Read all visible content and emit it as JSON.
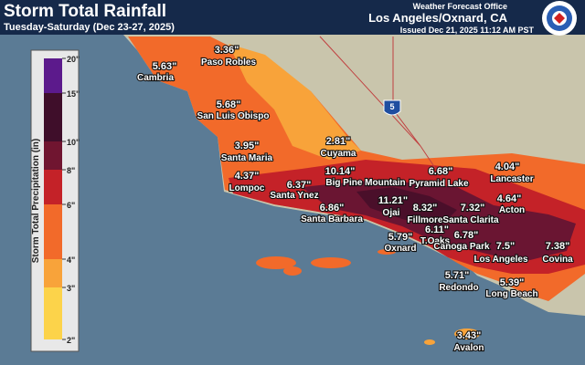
{
  "header": {
    "title": "Storm Total Rainfall",
    "subtitle": "Tuesday-Saturday (Dec 23-27, 2025)",
    "office": "Weather Forecast Office",
    "location": "Los Angeles/Oxnard, CA",
    "issued": "Issued Dec 21, 2025 11:12 AM PST"
  },
  "legend": {
    "title": "Storm Total Precipitation (in)",
    "ticks": [
      "20\"",
      "15\"",
      "10\"",
      "8\"",
      "6\"",
      "4\"",
      "3\"",
      "2\""
    ]
  },
  "map": {
    "interstate": "5",
    "places": [
      {
        "value": "5.63\"",
        "name": "Cambria"
      },
      {
        "value": "3.36\"",
        "name": "Paso Robles"
      },
      {
        "value": "5.68\"",
        "name": "San Luis Obispo"
      },
      {
        "value": "2.81\"",
        "name": "Cuyama"
      },
      {
        "value": "3.95\"",
        "name": "Santa Maria"
      },
      {
        "value": "4.37\"",
        "name": "Lompoc"
      },
      {
        "value": "10.14\"",
        "name": "Big Pine Mountain"
      },
      {
        "value": "6.37\"",
        "name": "Santa Ynez"
      },
      {
        "value": "6.68\"",
        "name": "Pyramid Lake"
      },
      {
        "value": "4.04\"",
        "name": "Lancaster"
      },
      {
        "value": "4.64\"",
        "name": "Acton"
      },
      {
        "value": "11.21\"",
        "name": "Ojai"
      },
      {
        "value": "8.32\"",
        "name": "Fillmore"
      },
      {
        "value": "7.32\"",
        "name": "Santa Clarita"
      },
      {
        "value": "6.86\"",
        "name": "Santa Barbara"
      },
      {
        "value": "5.79\"",
        "name": "Oxnard"
      },
      {
        "value": "6.11\"",
        "name": "T.Oaks"
      },
      {
        "value": "6.78\"",
        "name": "Canoga Park"
      },
      {
        "value": "7.5\"",
        "name": "Los Angeles"
      },
      {
        "value": "7.38\"",
        "name": "Covina"
      },
      {
        "value": "5.71\"",
        "name": "Redondo"
      },
      {
        "value": "5.39\"",
        "name": "Long Beach"
      },
      {
        "value": "3.43\"",
        "name": "Avalon"
      }
    ]
  }
}
